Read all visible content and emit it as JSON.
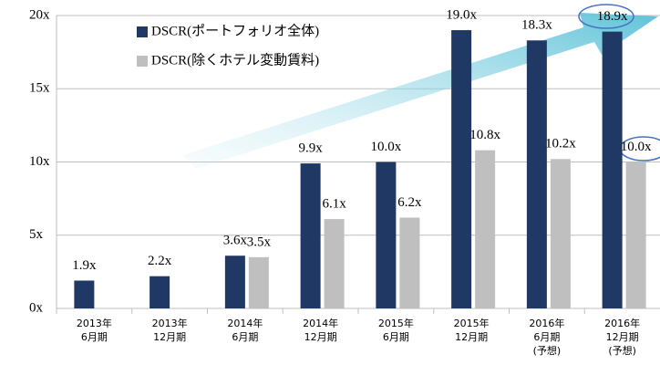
{
  "chart_data": {
    "type": "bar",
    "categories": [
      [
        "2013年",
        "6月期"
      ],
      [
        "2013年",
        "12月期"
      ],
      [
        "2014年",
        "6月期"
      ],
      [
        "2014年",
        "12月期"
      ],
      [
        "2015年",
        "6月期"
      ],
      [
        "2015年",
        "12月期"
      ],
      [
        "2016年",
        "6月期",
        "(予想)"
      ],
      [
        "2016年",
        "12月期",
        "(予想)"
      ]
    ],
    "series": [
      {
        "name": "DSCR(ポートフォリオ全体)",
        "color": "#203864",
        "values": [
          1.9,
          2.2,
          3.6,
          9.9,
          10.0,
          19.0,
          18.3,
          18.9
        ],
        "value_labels": [
          "1.9x",
          "2.2x",
          "3.6x",
          "9.9x",
          "10.0x",
          "19.0x",
          "18.3x",
          "18.9x"
        ]
      },
      {
        "name": "DSCR(除くホテル変動賃料)",
        "color": "#bfbfbf",
        "values": [
          null,
          null,
          3.5,
          6.1,
          6.2,
          10.8,
          10.2,
          10.0
        ],
        "value_labels": [
          null,
          null,
          "3.5x",
          "6.1x",
          "6.2x",
          "10.8x",
          "10.2x",
          "10.0x"
        ]
      }
    ],
    "ylim": [
      0,
      20
    ],
    "yticks": [
      {
        "value": 0,
        "label": "0x"
      },
      {
        "value": 5,
        "label": "5x"
      },
      {
        "value": 10,
        "label": "10x"
      },
      {
        "value": 15,
        "label": "15x"
      },
      {
        "value": 20,
        "label": "20x"
      }
    ],
    "grid": true
  }
}
